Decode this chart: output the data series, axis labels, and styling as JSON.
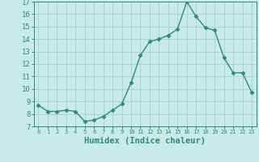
{
  "x": [
    0,
    1,
    2,
    3,
    4,
    5,
    6,
    7,
    8,
    9,
    10,
    11,
    12,
    13,
    14,
    15,
    16,
    17,
    18,
    19,
    20,
    21,
    22,
    23
  ],
  "y": [
    8.7,
    8.2,
    8.2,
    8.3,
    8.2,
    7.4,
    7.5,
    7.8,
    8.3,
    8.8,
    10.5,
    12.7,
    13.8,
    14.0,
    14.3,
    14.8,
    17.0,
    15.8,
    14.9,
    14.7,
    12.5,
    11.3,
    11.3,
    9.7
  ],
  "line_color": "#2a8c7a",
  "marker": "D",
  "marker_size": 2.5,
  "bg_color": "#c8eaea",
  "grid_color": "#aad4d4",
  "tick_color": "#2a8c7a",
  "xlabel": "Humidex (Indice chaleur)",
  "xlabel_fontsize": 7.5,
  "xlim": [
    -0.5,
    23.5
  ],
  "ylim": [
    7,
    17
  ],
  "yticks": [
    7,
    8,
    9,
    10,
    11,
    12,
    13,
    14,
    15,
    16,
    17
  ],
  "xtick_labels": [
    "0",
    "1",
    "2",
    "3",
    "4",
    "5",
    "6",
    "7",
    "8",
    "9",
    "10",
    "11",
    "12",
    "13",
    "14",
    "15",
    "16",
    "17",
    "18",
    "19",
    "20",
    "21",
    "22",
    "23"
  ]
}
